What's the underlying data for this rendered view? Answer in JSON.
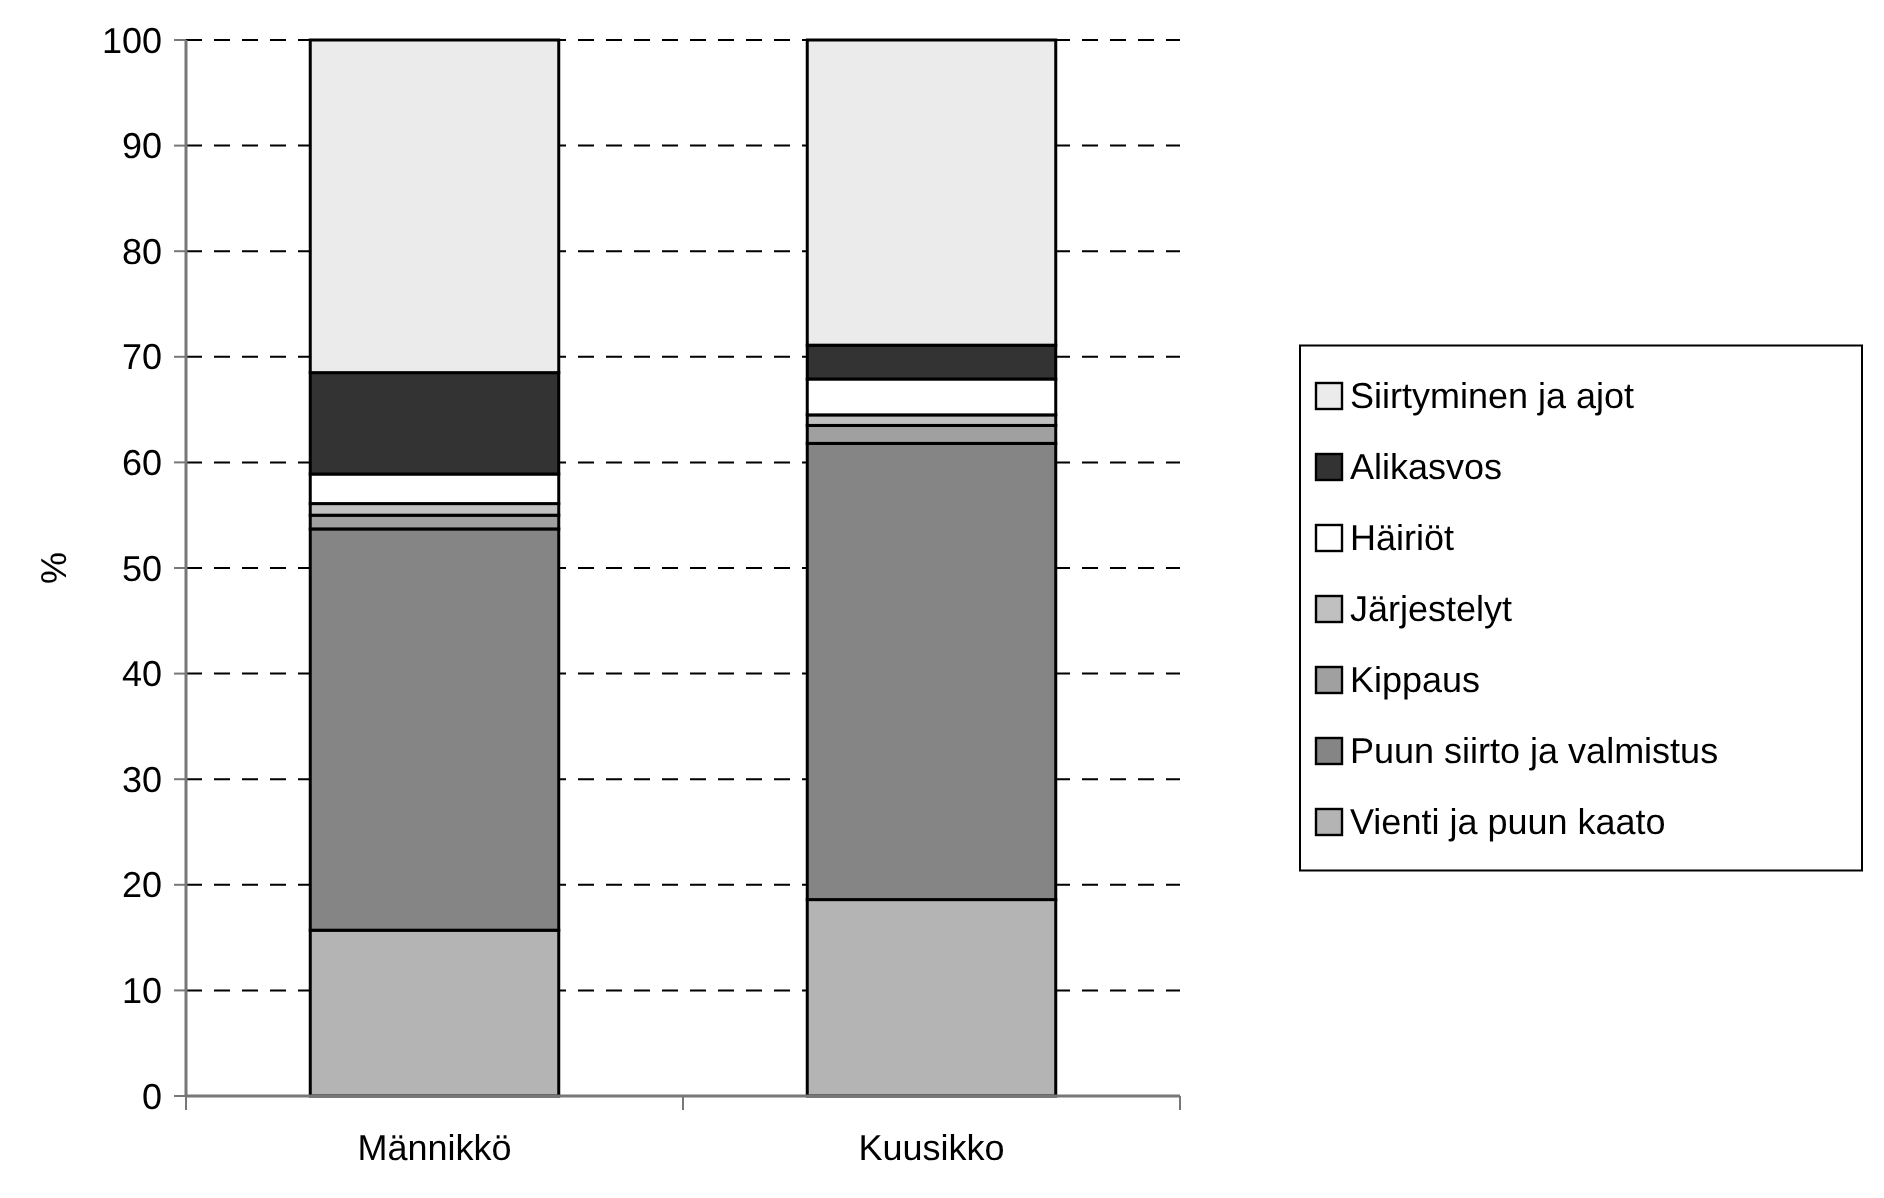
{
  "chart_data": {
    "type": "bar",
    "stacked": true,
    "categories": [
      "Männikkö",
      "Kuusikko"
    ],
    "ylabel": "%",
    "ylim": [
      0,
      100
    ],
    "yticks": [
      0,
      10,
      20,
      30,
      40,
      50,
      60,
      70,
      80,
      90,
      100
    ],
    "grid": "y",
    "legend": "right",
    "series": [
      {
        "name": "Vienti ja puun kaato",
        "color": "#b4b4b4",
        "values": [
          15.7,
          18.6
        ]
      },
      {
        "name": "Puun siirto ja valmistus",
        "color": "#858585",
        "values": [
          38.0,
          43.2
        ]
      },
      {
        "name": "Kippaus",
        "color": "#a0a0a0",
        "values": [
          1.3,
          1.7
        ]
      },
      {
        "name": "Järjestelyt",
        "color": "#c0c0c0",
        "values": [
          1.1,
          1.0
        ]
      },
      {
        "name": "Häiriöt",
        "color": "#ffffff",
        "values": [
          2.8,
          3.4
        ]
      },
      {
        "name": "Alikasvos",
        "color": "#333333",
        "values": [
          9.6,
          3.2
        ]
      },
      {
        "name": "Siirtyminen ja ajot",
        "color": "#ebebeb",
        "values": [
          31.5,
          28.9
        ]
      }
    ]
  }
}
